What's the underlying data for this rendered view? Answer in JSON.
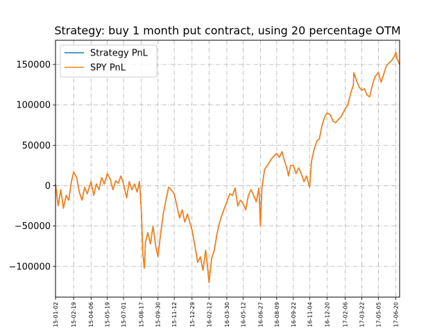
{
  "chart_data": {
    "type": "line",
    "title": "Strategy: buy 1 month put contract, using 20 percentage OTM",
    "xlabel": "",
    "ylabel": "",
    "ylim": [
      -138000,
      180000
    ],
    "yticks": [
      -100000,
      -50000,
      0,
      50000,
      100000,
      150000
    ],
    "ytick_labels": [
      "−100000",
      "−50000",
      "0",
      "50000",
      "100000",
      "150000"
    ],
    "x_start": "2015-01-02",
    "x_end": "2017-06-30",
    "xticks": [
      "2015-01-02",
      "2015-02-19",
      "2015-04-06",
      "2015-05-19",
      "2015-07-01",
      "2015-08-17",
      "2015-09-30",
      "2015-11-12",
      "2015-12-29",
      "2016-02-12",
      "2016-03-30",
      "2016-05-12",
      "2016-06-27",
      "2016-08-09",
      "2016-09-22",
      "2016-11-04",
      "2016-12-20",
      "2017-02-06",
      "2017-03-22",
      "2017-05-05",
      "2017-06-20"
    ],
    "xtick_labels": [
      "15-01-02",
      "15-02-19",
      "15-04-06",
      "15-05-19",
      "15-07-01",
      "15-08-17",
      "15-09-30",
      "15-11-12",
      "15-12-29",
      "16-02-12",
      "16-03-30",
      "16-05-12",
      "16-06-27",
      "16-08-09",
      "16-09-22",
      "16-11-04",
      "16-12-20",
      "17-02-06",
      "17-03-22",
      "17-05-05",
      "17-06-20"
    ],
    "grid": true,
    "legend": "top-left",
    "series": [
      {
        "name": "Strategy PnL",
        "color": "#1f77b4",
        "x": [
          "2015-01-02",
          "2015-01-09",
          "2015-01-16",
          "2015-01-23",
          "2015-01-30",
          "2015-02-06",
          "2015-02-13",
          "2015-02-19",
          "2015-02-27",
          "2015-03-06",
          "2015-03-13",
          "2015-03-20",
          "2015-03-27",
          "2015-04-06",
          "2015-04-13",
          "2015-04-20",
          "2015-04-27",
          "2015-05-04",
          "2015-05-11",
          "2015-05-19",
          "2015-05-27",
          "2015-06-03",
          "2015-06-10",
          "2015-06-17",
          "2015-06-24",
          "2015-07-01",
          "2015-07-09",
          "2015-07-16",
          "2015-07-23",
          "2015-07-30",
          "2015-08-06",
          "2015-08-12",
          "2015-08-17",
          "2015-08-21",
          "2015-08-25",
          "2015-08-28",
          "2015-09-03",
          "2015-09-10",
          "2015-09-17",
          "2015-09-24",
          "2015-09-30",
          "2015-10-07",
          "2015-10-14",
          "2015-10-21",
          "2015-10-28",
          "2015-11-04",
          "2015-11-12",
          "2015-11-19",
          "2015-11-26",
          "2015-12-03",
          "2015-12-10",
          "2015-12-17",
          "2015-12-29",
          "2016-01-06",
          "2016-01-13",
          "2016-01-20",
          "2016-01-27",
          "2016-02-03",
          "2016-02-08",
          "2016-02-12",
          "2016-02-19",
          "2016-02-26",
          "2016-03-04",
          "2016-03-11",
          "2016-03-18",
          "2016-03-30",
          "2016-04-07",
          "2016-04-14",
          "2016-04-21",
          "2016-04-28",
          "2016-05-05",
          "2016-05-12",
          "2016-05-19",
          "2016-05-26",
          "2016-06-02",
          "2016-06-09",
          "2016-06-16",
          "2016-06-23",
          "2016-06-27",
          "2016-07-01",
          "2016-07-08",
          "2016-07-15",
          "2016-07-22",
          "2016-07-29",
          "2016-08-09",
          "2016-08-16",
          "2016-08-23",
          "2016-08-30",
          "2016-09-06",
          "2016-09-09",
          "2016-09-15",
          "2016-09-22",
          "2016-09-29",
          "2016-10-06",
          "2016-10-13",
          "2016-10-20",
          "2016-10-27",
          "2016-11-04",
          "2016-11-09",
          "2016-11-16",
          "2016-11-23",
          "2016-11-30",
          "2016-12-07",
          "2016-12-14",
          "2016-12-20",
          "2016-12-28",
          "2017-01-05",
          "2017-01-12",
          "2017-01-19",
          "2017-01-26",
          "2017-02-06",
          "2017-02-13",
          "2017-02-21",
          "2017-02-28",
          "2017-03-01",
          "2017-03-08",
          "2017-03-15",
          "2017-03-22",
          "2017-03-29",
          "2017-04-05",
          "2017-04-12",
          "2017-04-19",
          "2017-04-26",
          "2017-05-05",
          "2017-05-12",
          "2017-05-19",
          "2017-05-26",
          "2017-06-02",
          "2017-06-09",
          "2017-06-16",
          "2017-06-20",
          "2017-06-23",
          "2017-06-30"
        ],
        "values": [
          2000,
          -25000,
          -5000,
          -28000,
          -12000,
          -18000,
          5000,
          17000,
          10000,
          -8000,
          -18000,
          -2000,
          -10000,
          5000,
          -12000,
          2000,
          -5000,
          10000,
          2000,
          15000,
          8000,
          -5000,
          6000,
          3000,
          12000,
          2000,
          -15000,
          5000,
          -5000,
          2000,
          -8000,
          5000,
          -30000,
          -85000,
          -102000,
          -70000,
          -58000,
          -72000,
          -50000,
          -75000,
          -88000,
          -60000,
          -35000,
          -18000,
          -2000,
          -5000,
          -10000,
          -25000,
          -40000,
          -30000,
          -45000,
          -35000,
          -55000,
          -75000,
          -95000,
          -88000,
          -105000,
          -80000,
          -100000,
          -120000,
          -90000,
          -80000,
          -60000,
          -45000,
          -35000,
          -20000,
          -10000,
          -12000,
          -3000,
          -25000,
          -18000,
          -22000,
          -30000,
          -12000,
          -5000,
          -12000,
          -20000,
          -3000,
          -50000,
          -2000,
          20000,
          25000,
          30000,
          35000,
          40000,
          35000,
          42000,
          30000,
          20000,
          12000,
          25000,
          25000,
          15000,
          22000,
          15000,
          5000,
          12000,
          -2000,
          30000,
          45000,
          55000,
          58000,
          75000,
          85000,
          90000,
          88000,
          80000,
          78000,
          82000,
          85000,
          95000,
          100000,
          115000,
          125000,
          140000,
          130000,
          122000,
          118000,
          120000,
          112000,
          110000,
          125000,
          135000,
          140000,
          128000,
          138000,
          148000,
          152000,
          155000,
          160000,
          165000,
          158000,
          150000
        ]
      },
      {
        "name": "SPY PnL",
        "color": "#ff7f0e",
        "x": [
          "2015-01-02",
          "2015-01-09",
          "2015-01-16",
          "2015-01-23",
          "2015-01-30",
          "2015-02-06",
          "2015-02-13",
          "2015-02-19",
          "2015-02-27",
          "2015-03-06",
          "2015-03-13",
          "2015-03-20",
          "2015-03-27",
          "2015-04-06",
          "2015-04-13",
          "2015-04-20",
          "2015-04-27",
          "2015-05-04",
          "2015-05-11",
          "2015-05-19",
          "2015-05-27",
          "2015-06-03",
          "2015-06-10",
          "2015-06-17",
          "2015-06-24",
          "2015-07-01",
          "2015-07-09",
          "2015-07-16",
          "2015-07-23",
          "2015-07-30",
          "2015-08-06",
          "2015-08-12",
          "2015-08-17",
          "2015-08-21",
          "2015-08-25",
          "2015-08-28",
          "2015-09-03",
          "2015-09-10",
          "2015-09-17",
          "2015-09-24",
          "2015-09-30",
          "2015-10-07",
          "2015-10-14",
          "2015-10-21",
          "2015-10-28",
          "2015-11-04",
          "2015-11-12",
          "2015-11-19",
          "2015-11-26",
          "2015-12-03",
          "2015-12-10",
          "2015-12-17",
          "2015-12-29",
          "2016-01-06",
          "2016-01-13",
          "2016-01-20",
          "2016-01-27",
          "2016-02-03",
          "2016-02-08",
          "2016-02-12",
          "2016-02-19",
          "2016-02-26",
          "2016-03-04",
          "2016-03-11",
          "2016-03-18",
          "2016-03-30",
          "2016-04-07",
          "2016-04-14",
          "2016-04-21",
          "2016-04-28",
          "2016-05-05",
          "2016-05-12",
          "2016-05-19",
          "2016-05-26",
          "2016-06-02",
          "2016-06-09",
          "2016-06-16",
          "2016-06-23",
          "2016-06-27",
          "2016-07-01",
          "2016-07-08",
          "2016-07-15",
          "2016-07-22",
          "2016-07-29",
          "2016-08-09",
          "2016-08-16",
          "2016-08-23",
          "2016-08-30",
          "2016-09-06",
          "2016-09-09",
          "2016-09-15",
          "2016-09-22",
          "2016-09-29",
          "2016-10-06",
          "2016-10-13",
          "2016-10-20",
          "2016-10-27",
          "2016-11-04",
          "2016-11-09",
          "2016-11-16",
          "2016-11-23",
          "2016-11-30",
          "2016-12-07",
          "2016-12-14",
          "2016-12-20",
          "2016-12-28",
          "2017-01-05",
          "2017-01-12",
          "2017-01-19",
          "2017-01-26",
          "2017-02-06",
          "2017-02-13",
          "2017-02-21",
          "2017-02-28",
          "2017-03-01",
          "2017-03-08",
          "2017-03-15",
          "2017-03-22",
          "2017-03-29",
          "2017-04-05",
          "2017-04-12",
          "2017-04-19",
          "2017-04-26",
          "2017-05-05",
          "2017-05-12",
          "2017-05-19",
          "2017-05-26",
          "2017-06-02",
          "2017-06-09",
          "2017-06-16",
          "2017-06-20",
          "2017-06-23",
          "2017-06-30"
        ],
        "values": [
          2000,
          -25000,
          -5000,
          -28000,
          -12000,
          -18000,
          5000,
          17000,
          10000,
          -8000,
          -18000,
          -2000,
          -10000,
          5000,
          -12000,
          2000,
          -5000,
          10000,
          2000,
          15000,
          8000,
          -5000,
          6000,
          3000,
          12000,
          2000,
          -15000,
          5000,
          -5000,
          2000,
          -8000,
          5000,
          -30000,
          -85000,
          -102000,
          -70000,
          -58000,
          -72000,
          -50000,
          -75000,
          -88000,
          -60000,
          -35000,
          -18000,
          -2000,
          -5000,
          -10000,
          -25000,
          -40000,
          -30000,
          -45000,
          -35000,
          -55000,
          -75000,
          -95000,
          -88000,
          -105000,
          -80000,
          -100000,
          -120000,
          -90000,
          -80000,
          -60000,
          -45000,
          -35000,
          -20000,
          -10000,
          -12000,
          -3000,
          -25000,
          -18000,
          -22000,
          -30000,
          -12000,
          -5000,
          -12000,
          -20000,
          -3000,
          -50000,
          -2000,
          20000,
          25000,
          30000,
          35000,
          40000,
          35000,
          42000,
          30000,
          20000,
          12000,
          25000,
          25000,
          15000,
          22000,
          15000,
          5000,
          12000,
          -2000,
          30000,
          45000,
          55000,
          58000,
          75000,
          85000,
          90000,
          88000,
          80000,
          78000,
          82000,
          85000,
          95000,
          100000,
          115000,
          125000,
          140000,
          130000,
          122000,
          118000,
          120000,
          112000,
          110000,
          125000,
          135000,
          140000,
          128000,
          138000,
          148000,
          152000,
          155000,
          160000,
          165000,
          158000,
          150000
        ]
      }
    ]
  }
}
